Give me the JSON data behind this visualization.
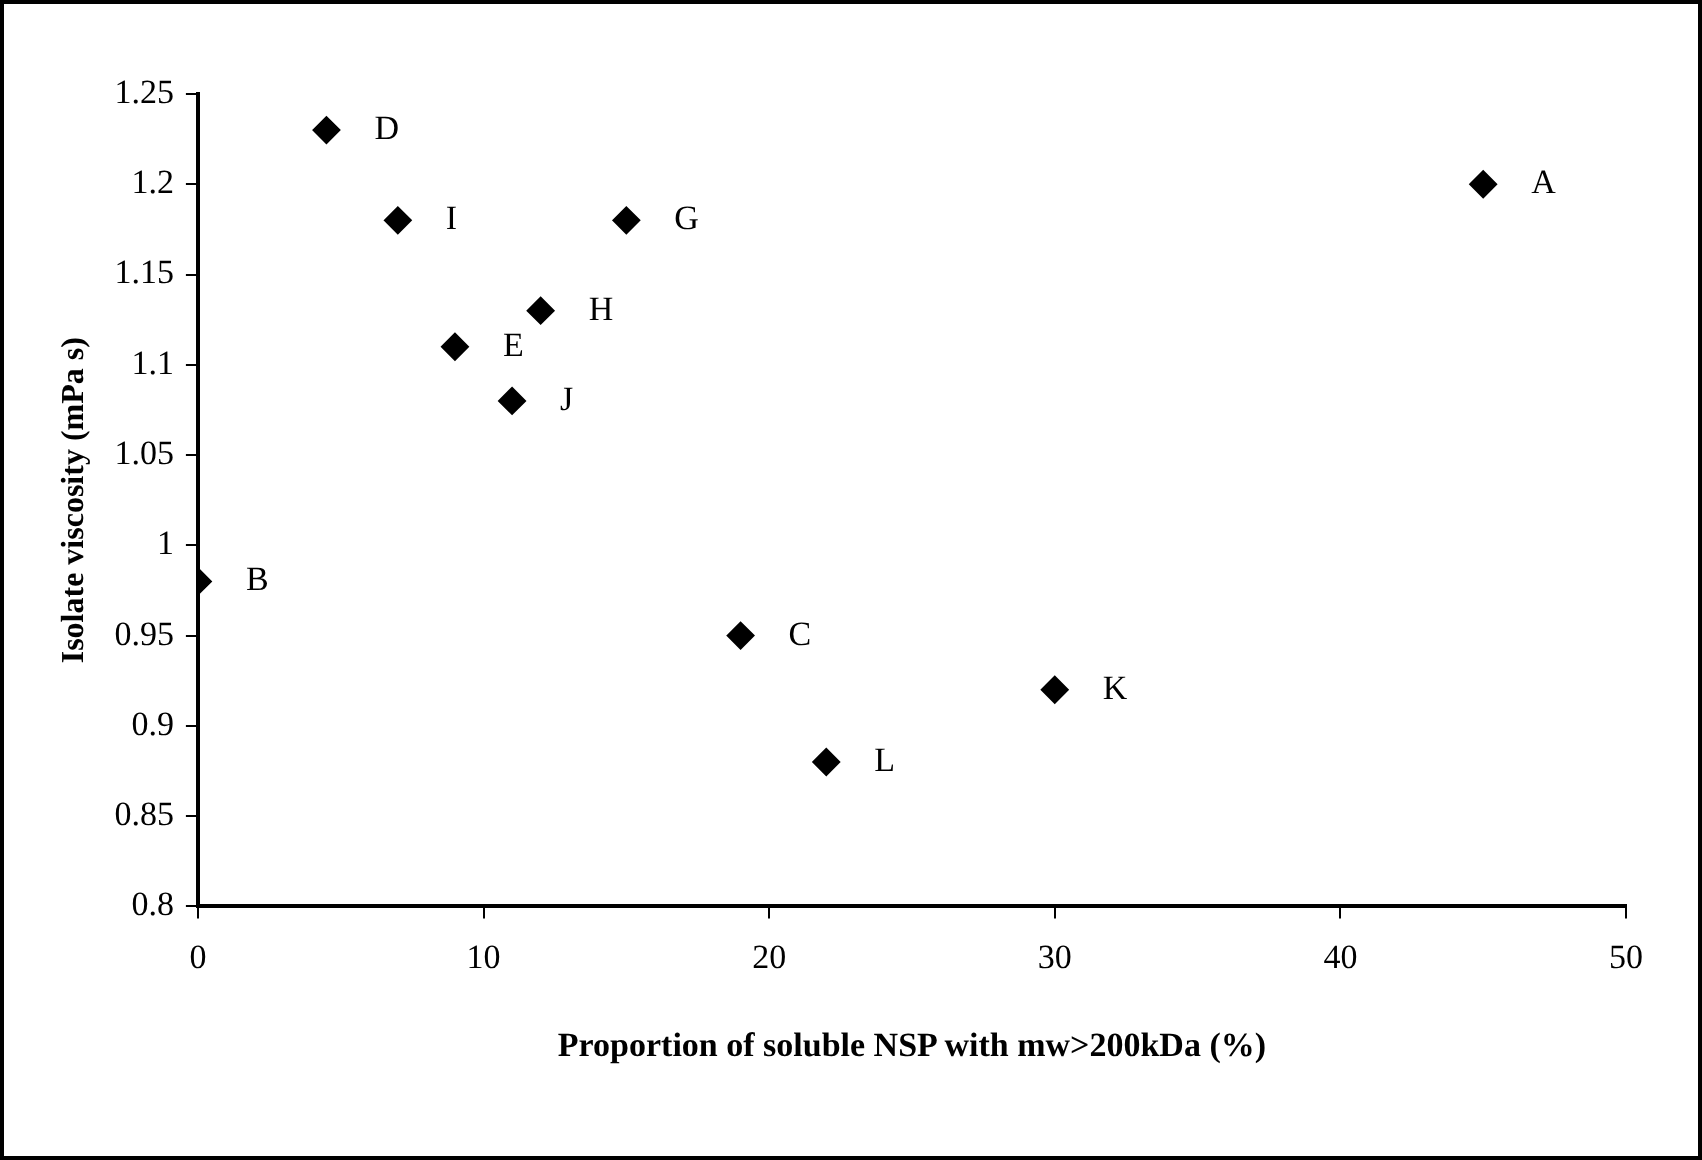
{
  "chart_data": {
    "type": "scatter",
    "xlabel": "Proportion of soluble NSP with mw>200kDa (%)",
    "ylabel": "Isolate viscosity (mPa s)",
    "series": [
      {
        "color": "#000000",
        "x": [
          45,
          0,
          19,
          4.5,
          9,
          15,
          12,
          7,
          11,
          30,
          22
        ],
        "values": [
          1.2,
          0.98,
          0.95,
          1.23,
          1.11,
          1.18,
          1.13,
          1.18,
          1.08,
          0.92,
          0.88
        ],
        "value_labels": [
          "A",
          "B",
          "C",
          "D",
          "E",
          "G",
          "H",
          "I",
          "J",
          "K",
          "L"
        ]
      }
    ],
    "xlim": [
      0,
      50
    ],
    "xticks": [
      0,
      10,
      20,
      30,
      40,
      50
    ],
    "ylim": [
      0.8,
      1.25
    ],
    "yticks": [
      0.8,
      0.85,
      0.9,
      0.95,
      1,
      1.05,
      1.1,
      1.15,
      1.2,
      1.25
    ],
    "grid": false,
    "legend": false,
    "marker": "diamond"
  }
}
